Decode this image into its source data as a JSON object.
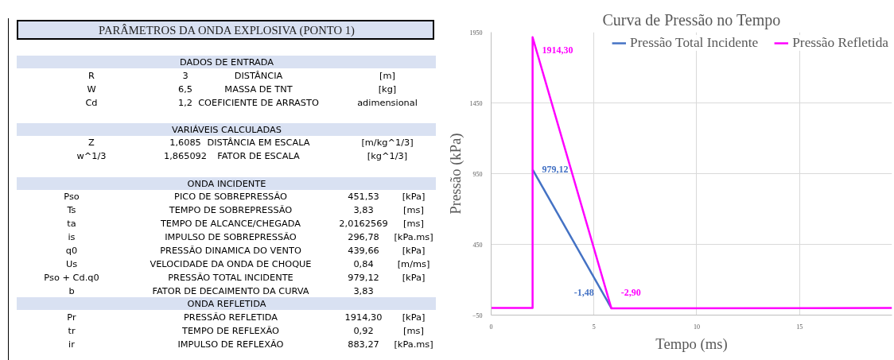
{
  "chart_data": [
    {
      "type": "other",
      "title": "PARÂMETROS DA ONDA EXPLOSIVA (PONTO 1)",
      "annotations": [
        "DADOS DE ENTRADA",
        "R",
        "3",
        "DISTÂNCIA",
        "[m]",
        "W",
        "6,5",
        "MASSA DE TNT",
        "[kg]",
        "Cd",
        "1,2",
        "COEFICIENTE DE ARRASTO",
        "adimensional",
        "VARIÁVEIS CALCULADAS",
        "Z",
        "1,6085",
        "DISTÂNCIA EM ESCALA",
        "[m/kg^1/3]",
        "w^1/3",
        "1,865092",
        "FATOR DE ESCALA",
        "[kg^1/3]",
        "ONDA INCIDENTE",
        "Pso",
        "PICO DE SOBREPRESSÃO",
        "451,53",
        "[kPa]",
        "Ts",
        "TEMPO DE SOBREPRESSÃO",
        "3,83",
        "[ms]",
        "ta",
        "TEMPO DE ALCANCE/CHEGADA",
        "2,0162569",
        "[ms]",
        "is",
        "IMPULSO DE SOBREPRESSÃO",
        "296,78",
        "[kPa.ms]",
        "q0",
        "PRESSÃO DINAMICA DO VENTO",
        "439,66",
        "[kPa]",
        "Us",
        "VELOCIDADE DA ONDA DE CHOQUE",
        "0,84",
        "[m/ms]",
        "Pso + Cd.q0",
        "PRESSÃO TOTAL INCIDENTE",
        "979,12",
        "[kPa]",
        "b",
        "FATOR DE DECAIMENTO DA CURVA",
        "3,83",
        "ONDA REFLETIDA",
        "Pr",
        "PRESSÃO REFLETIDA",
        "1914,30",
        "[kPa]",
        "tr",
        "TEMPO DE REFLEXÃO",
        "0,92",
        "[ms]",
        "ir",
        "IMPULSO DE REFLEXÃO",
        "883,27",
        "[kPa.ms]"
      ]
    },
    {
      "type": "line",
      "title": "Curva de Pressão no Tempo",
      "xlabel": "Tempo (ms)",
      "ylabel": "Pressão (kPa)",
      "xlim": [
        0,
        19.5
      ],
      "xticks": [
        0,
        5,
        10,
        15
      ],
      "ylim": [
        -50,
        1950
      ],
      "yticks": [
        -50,
        450,
        950,
        1450,
        1950
      ],
      "grid": true,
      "legend": "top right",
      "marker": "none",
      "line_style": "solid",
      "series": [
        {
          "name": "Pressão Total Incidente",
          "color": "#4472c4",
          "x": [
            2.0162569,
            5.85
          ],
          "values": [
            979.12,
            -1.48
          ],
          "value_labels": [
            "979,12",
            "-1,48"
          ]
        },
        {
          "name": "Pressão Refletida",
          "color": "#ff00ff",
          "x": [
            0,
            2.0162569,
            2.0162569,
            5.85,
            19.5
          ],
          "values": [
            0,
            0,
            1914.3,
            -2.9,
            0
          ],
          "value_labels": [
            null,
            null,
            "1914,30",
            "-2,90",
            null
          ]
        }
      ]
    }
  ]
}
